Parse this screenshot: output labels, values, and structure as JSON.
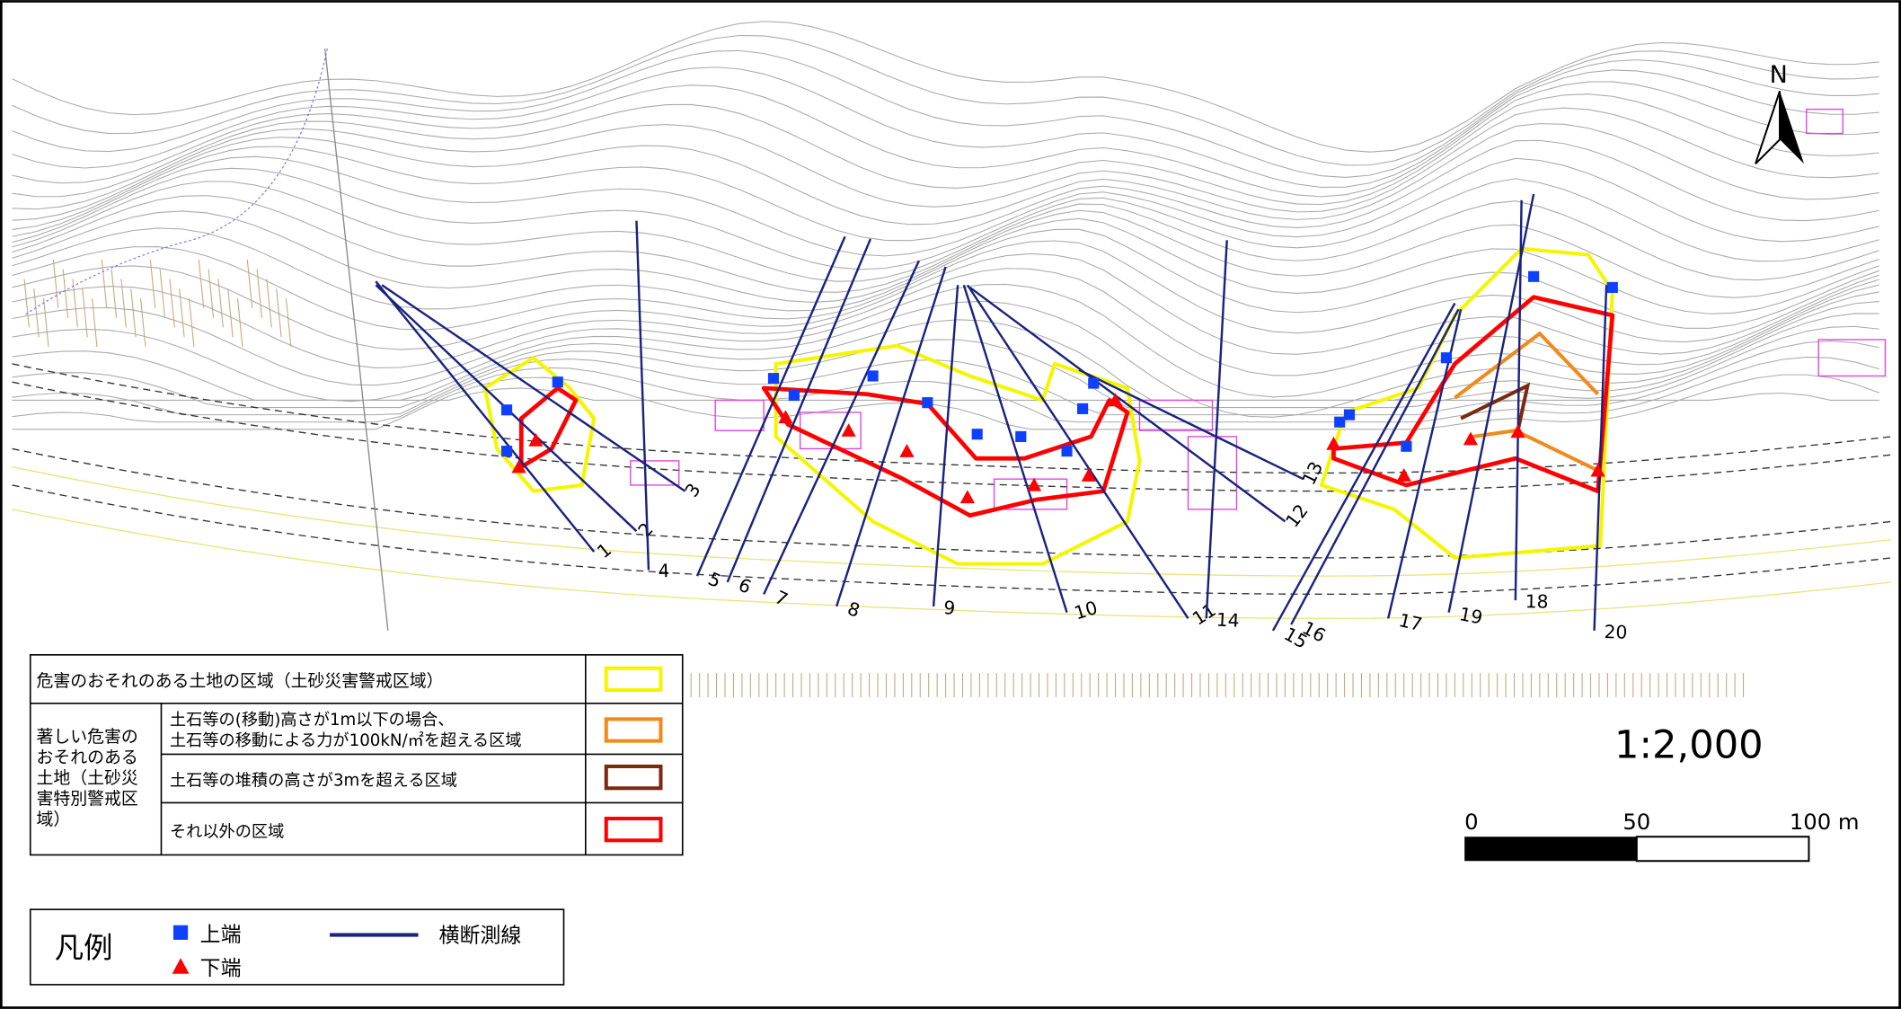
{
  "map": {
    "north": "N",
    "scale": "1:2,000",
    "scale_bar": [
      "0",
      "50",
      "100 m"
    ],
    "survey_line_labels": [
      "1",
      "2",
      "3",
      "4",
      "5",
      "6",
      "7",
      "8",
      "9",
      "10",
      "11",
      "12",
      "13",
      "14",
      "15",
      "16",
      "17",
      "18",
      "19",
      "20"
    ]
  },
  "zone_legend": {
    "warning_zone": "危害のおそれのある土地の区域（土砂災害警戒区域）",
    "special_zone": [
      "著しい危害の",
      "おそれのある",
      "土地（土砂災",
      "害特別警戒区",
      "域）"
    ],
    "rows": [
      [
        "土石等の(移動)高さが1m以下の場合、",
        "土石等の移動による力が100kN/㎡を超える区域"
      ],
      [
        "土石等の堆積の高さが3mを超える区域"
      ],
      [
        "それ以外の区域"
      ]
    ]
  },
  "legend": {
    "title": "凡例",
    "upper": "上端",
    "lower": "下端",
    "line": "横断測線"
  }
}
